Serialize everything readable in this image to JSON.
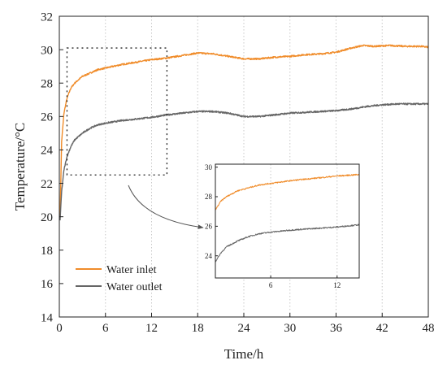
{
  "chart_data": {
    "type": "line",
    "xlabel": "Time/h",
    "ylabel": "Temperature/°C",
    "xlim": [
      0,
      48
    ],
    "ylim": [
      14,
      32
    ],
    "xticks": [
      0,
      6,
      12,
      18,
      24,
      30,
      36,
      42,
      48
    ],
    "yticks": [
      14,
      16,
      18,
      20,
      22,
      24,
      26,
      28,
      30,
      32
    ],
    "grid": "vertical dotted",
    "legend": "bottom-left",
    "series": [
      {
        "name": "Water inlet",
        "color": "#f08c2a",
        "x": [
          0.1,
          0.3,
          0.6,
          1,
          1.5,
          2,
          3,
          4,
          5,
          6,
          8,
          10,
          12,
          14,
          16,
          18,
          20,
          22,
          24,
          26,
          28,
          30,
          32,
          34,
          36,
          38,
          39.5,
          41,
          43,
          45,
          47,
          48
        ],
        "y": [
          20.0,
          24.5,
          26.2,
          27.1,
          27.7,
          28.0,
          28.4,
          28.6,
          28.8,
          28.9,
          29.1,
          29.25,
          29.4,
          29.5,
          29.65,
          29.8,
          29.75,
          29.6,
          29.45,
          29.45,
          29.55,
          29.6,
          29.7,
          29.75,
          29.85,
          30.1,
          30.25,
          30.2,
          30.25,
          30.2,
          30.2,
          30.15
        ]
      },
      {
        "name": "Water outlet",
        "color": "#666666",
        "x": [
          0.1,
          0.3,
          0.6,
          1,
          1.5,
          2,
          3,
          4,
          5,
          6,
          8,
          10,
          12,
          14,
          16,
          18,
          20,
          22,
          24,
          26,
          28,
          30,
          32,
          34,
          36,
          38,
          40,
          42,
          44,
          46,
          48
        ],
        "y": [
          19.8,
          21.5,
          22.8,
          23.6,
          24.2,
          24.6,
          25.0,
          25.3,
          25.5,
          25.6,
          25.75,
          25.85,
          25.95,
          26.1,
          26.2,
          26.3,
          26.3,
          26.2,
          26.0,
          26.0,
          26.1,
          26.2,
          26.25,
          26.3,
          26.35,
          26.45,
          26.6,
          26.7,
          26.75,
          26.75,
          26.75
        ]
      }
    ],
    "inset": {
      "xlim": [
        1,
        14
      ],
      "ylim": [
        22.5,
        30.2
      ],
      "xticks": [
        6,
        12
      ],
      "yticks": [
        24,
        26,
        28,
        30
      ],
      "source_box": {
        "x": [
          1,
          14
        ],
        "y": [
          22.5,
          30.1
        ]
      }
    }
  }
}
